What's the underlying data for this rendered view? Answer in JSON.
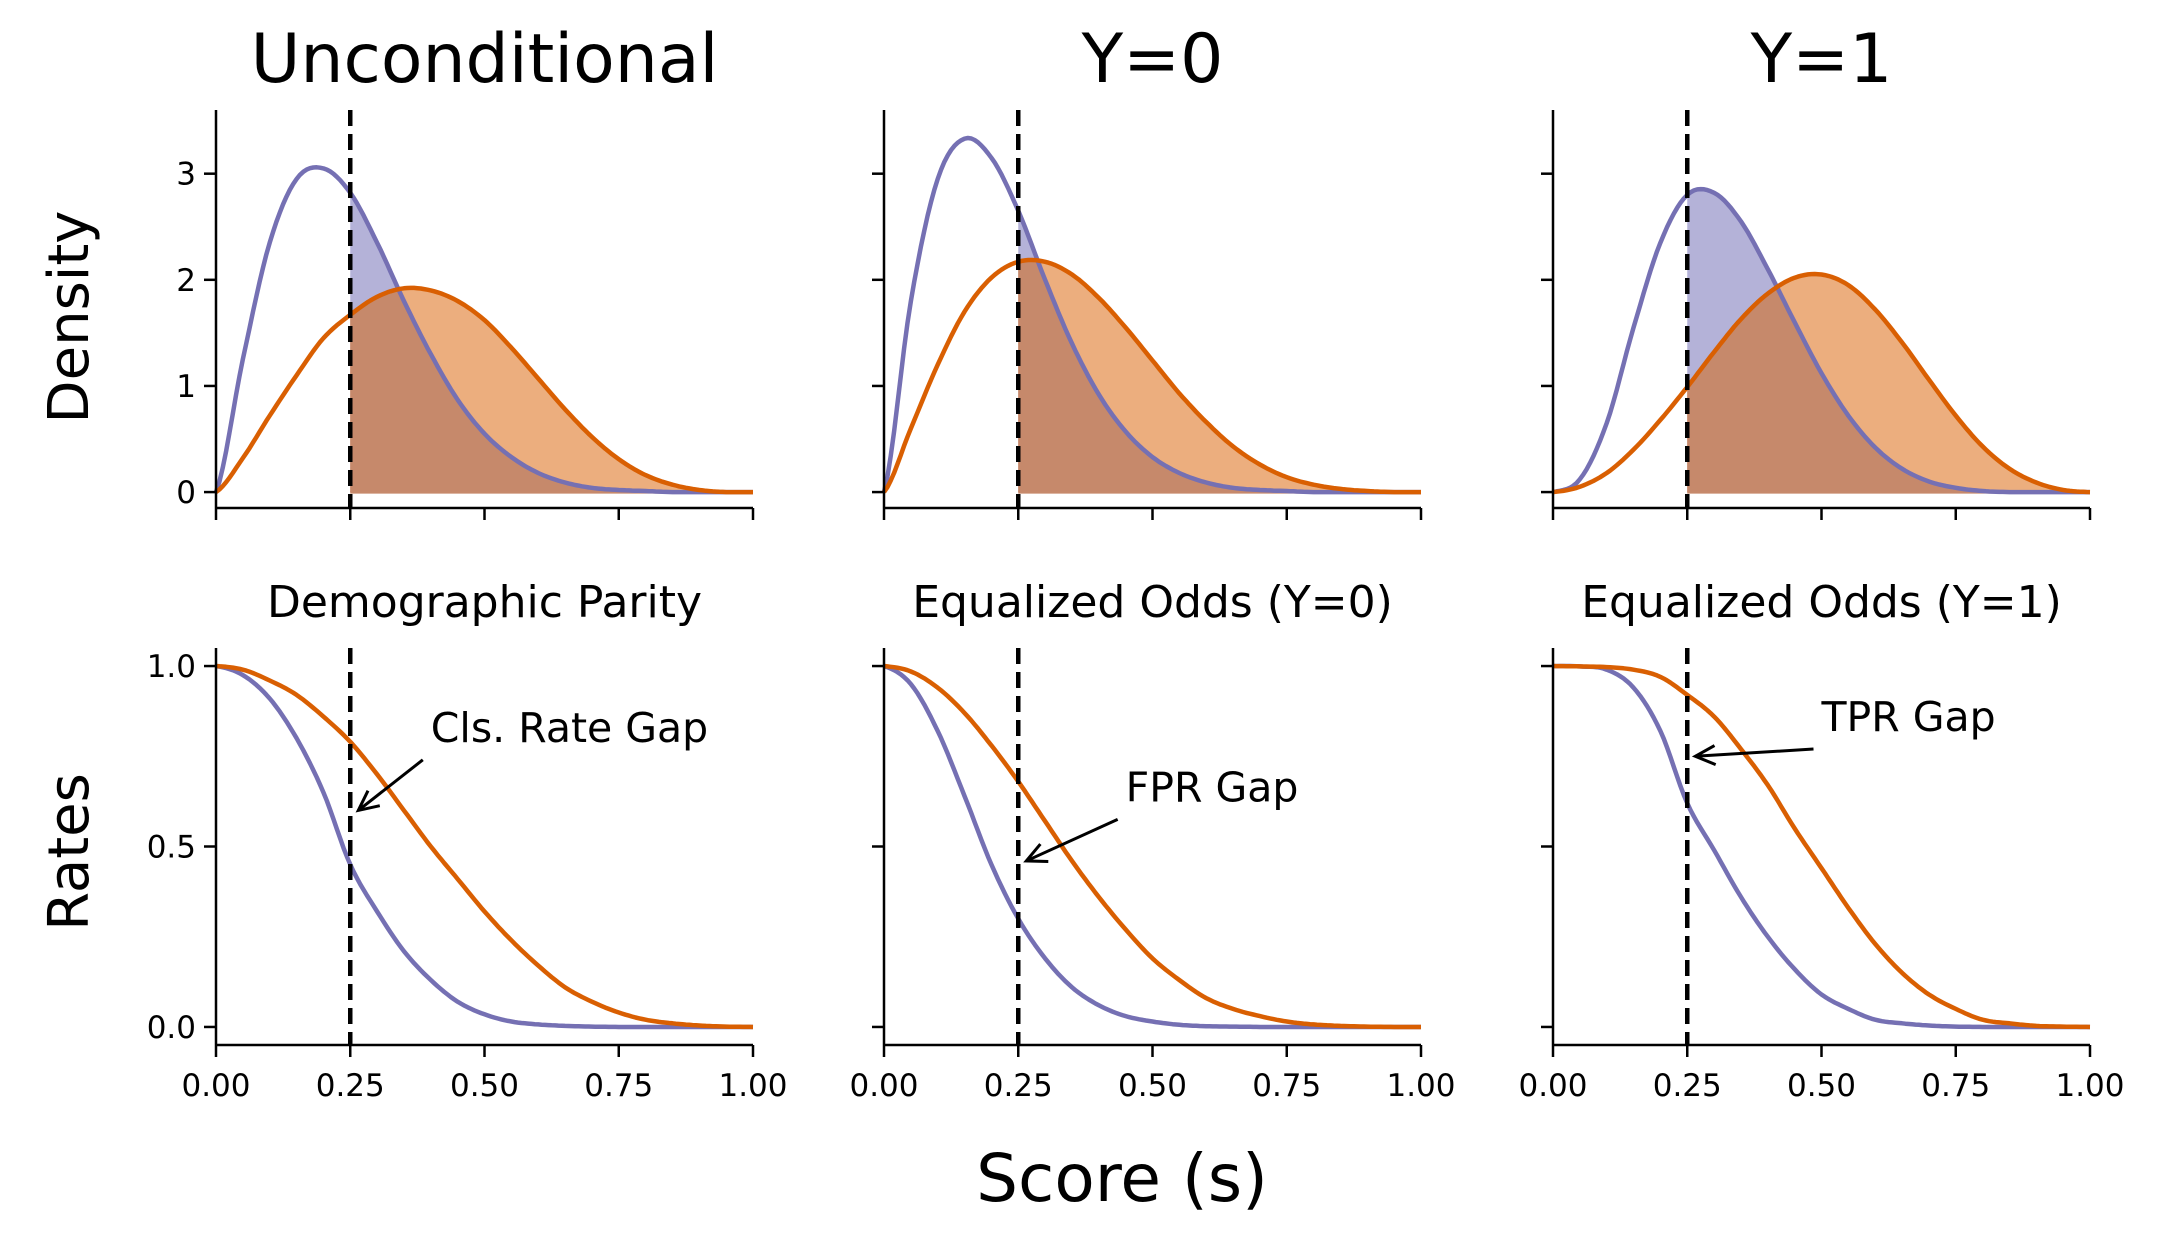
{
  "figure": {
    "xlabel": "Score (s)",
    "row_labels": [
      "Density",
      "Rates"
    ]
  },
  "colors": {
    "group_a": "#7570b3",
    "group_b": "#d95f02",
    "fill_a": "#b4b2d8",
    "fill_b": "#ecae7e",
    "overlap": "#c6896b",
    "threshold": "#000000"
  },
  "chart_data": [
    {
      "id": "density-unconditional",
      "type": "area",
      "title": "Unconditional",
      "xlabel": "",
      "ylabel": "Density",
      "xlim": [
        0,
        1
      ],
      "ylim": [
        -0.15,
        3.6
      ],
      "yticks": [
        0,
        1,
        2,
        3
      ],
      "ytick_labels": [
        "0",
        "1",
        "2",
        "3"
      ],
      "show_ytick_labels": true,
      "xticks": [
        0,
        0.25,
        0.5,
        0.75,
        1.0
      ],
      "show_xtick_labels": false,
      "threshold": 0.25,
      "shade_right_of_threshold": true,
      "series": [
        {
          "color": "#7570b3",
          "x": [
            0,
            0.05,
            0.1,
            0.15,
            0.2,
            0.25,
            0.3,
            0.35,
            0.4,
            0.45,
            0.5,
            0.55,
            0.6,
            0.65,
            0.7,
            0.75,
            0.8,
            0.85,
            0.9,
            0.95,
            1.0
          ],
          "y": [
            0,
            1.25,
            2.35,
            2.95,
            3.05,
            2.82,
            2.35,
            1.8,
            1.3,
            0.87,
            0.55,
            0.33,
            0.18,
            0.09,
            0.04,
            0.02,
            0.01,
            0,
            0,
            0,
            0
          ]
        },
        {
          "color": "#d95f02",
          "x": [
            0,
            0.05,
            0.1,
            0.15,
            0.2,
            0.25,
            0.3,
            0.35,
            0.4,
            0.45,
            0.5,
            0.55,
            0.6,
            0.65,
            0.7,
            0.75,
            0.8,
            0.85,
            0.9,
            0.95,
            1.0
          ],
          "y": [
            0,
            0.32,
            0.72,
            1.1,
            1.45,
            1.67,
            1.84,
            1.92,
            1.9,
            1.8,
            1.62,
            1.36,
            1.07,
            0.78,
            0.52,
            0.31,
            0.16,
            0.07,
            0.02,
            0,
            0
          ]
        }
      ]
    },
    {
      "id": "density-y0",
      "type": "area",
      "title": "Y=0",
      "xlabel": "",
      "ylabel": "",
      "xlim": [
        0,
        1
      ],
      "ylim": [
        -0.15,
        3.6
      ],
      "yticks": [
        0,
        1,
        2,
        3
      ],
      "show_ytick_labels": false,
      "xticks": [
        0,
        0.25,
        0.5,
        0.75,
        1.0
      ],
      "show_xtick_labels": false,
      "threshold": 0.25,
      "shade_right_of_threshold": true,
      "series": [
        {
          "color": "#7570b3",
          "x": [
            0,
            0.05,
            0.1,
            0.15,
            0.2,
            0.25,
            0.3,
            0.35,
            0.4,
            0.45,
            0.5,
            0.55,
            0.6,
            0.65,
            0.7,
            0.75,
            0.8,
            0.85,
            0.9,
            0.95,
            1.0
          ],
          "y": [
            0,
            1.8,
            2.95,
            3.33,
            3.15,
            2.65,
            2.0,
            1.4,
            0.92,
            0.57,
            0.33,
            0.18,
            0.09,
            0.04,
            0.02,
            0.01,
            0,
            0,
            0,
            0,
            0
          ]
        },
        {
          "color": "#d95f02",
          "x": [
            0,
            0.05,
            0.1,
            0.15,
            0.2,
            0.25,
            0.3,
            0.35,
            0.4,
            0.45,
            0.5,
            0.55,
            0.6,
            0.65,
            0.7,
            0.75,
            0.8,
            0.85,
            0.9,
            0.95,
            1.0
          ],
          "y": [
            0,
            0.6,
            1.2,
            1.7,
            2.02,
            2.17,
            2.17,
            2.05,
            1.83,
            1.55,
            1.24,
            0.93,
            0.66,
            0.43,
            0.26,
            0.14,
            0.07,
            0.03,
            0.01,
            0,
            0
          ]
        }
      ]
    },
    {
      "id": "density-y1",
      "type": "area",
      "title": "Y=1",
      "xlabel": "",
      "ylabel": "",
      "xlim": [
        0,
        1
      ],
      "ylim": [
        -0.15,
        3.6
      ],
      "yticks": [
        0,
        1,
        2,
        3
      ],
      "show_ytick_labels": false,
      "xticks": [
        0,
        0.25,
        0.5,
        0.75,
        1.0
      ],
      "show_xtick_labels": false,
      "threshold": 0.25,
      "shade_right_of_threshold": true,
      "series": [
        {
          "color": "#7570b3",
          "x": [
            0,
            0.05,
            0.1,
            0.15,
            0.2,
            0.25,
            0.3,
            0.35,
            0.4,
            0.45,
            0.5,
            0.55,
            0.6,
            0.65,
            0.7,
            0.75,
            0.8,
            0.85,
            0.9,
            0.95,
            1.0
          ],
          "y": [
            0,
            0.12,
            0.65,
            1.55,
            2.35,
            2.8,
            2.82,
            2.55,
            2.1,
            1.6,
            1.12,
            0.72,
            0.42,
            0.22,
            0.1,
            0.04,
            0.01,
            0,
            0,
            0,
            0
          ]
        },
        {
          "color": "#d95f02",
          "x": [
            0,
            0.05,
            0.1,
            0.15,
            0.2,
            0.25,
            0.3,
            0.35,
            0.4,
            0.45,
            0.5,
            0.55,
            0.6,
            0.65,
            0.7,
            0.75,
            0.8,
            0.85,
            0.9,
            0.95,
            1.0
          ],
          "y": [
            0,
            0.05,
            0.18,
            0.4,
            0.68,
            0.99,
            1.32,
            1.63,
            1.87,
            2.02,
            2.05,
            1.95,
            1.72,
            1.41,
            1.06,
            0.72,
            0.43,
            0.22,
            0.09,
            0.02,
            0
          ]
        }
      ]
    },
    {
      "id": "rates-dp",
      "type": "line",
      "title": "Demographic Parity",
      "xlabel": "",
      "ylabel": "Rates",
      "xlim": [
        0,
        1
      ],
      "ylim": [
        -0.05,
        1.05
      ],
      "yticks": [
        0,
        0.5,
        1.0
      ],
      "ytick_labels": [
        "0.0",
        "0.5",
        "1.0"
      ],
      "show_ytick_labels": true,
      "xticks": [
        0,
        0.25,
        0.5,
        0.75,
        1.0
      ],
      "xtick_labels": [
        "0.00",
        "0.25",
        "0.50",
        "0.75",
        "1.00"
      ],
      "show_xtick_labels": true,
      "threshold": 0.25,
      "annotation": {
        "text": "Cls. Rate Gap",
        "text_x": 0.4,
        "text_y": 0.79,
        "arrow_x": 0.265,
        "arrow_y": 0.6
      },
      "series": [
        {
          "color": "#7570b3",
          "x": [
            0,
            0.05,
            0.1,
            0.15,
            0.2,
            0.25,
            0.3,
            0.35,
            0.4,
            0.45,
            0.5,
            0.55,
            0.6,
            0.65,
            0.7,
            0.75,
            0.8,
            0.85,
            0.9,
            0.95,
            1.0
          ],
          "y": [
            1.0,
            0.975,
            0.91,
            0.8,
            0.65,
            0.45,
            0.32,
            0.21,
            0.13,
            0.07,
            0.035,
            0.015,
            0.007,
            0.003,
            0.001,
            0,
            0,
            0,
            0,
            0,
            0
          ]
        },
        {
          "color": "#d95f02",
          "x": [
            0,
            0.05,
            0.1,
            0.15,
            0.2,
            0.25,
            0.3,
            0.35,
            0.4,
            0.45,
            0.5,
            0.55,
            0.6,
            0.65,
            0.7,
            0.75,
            0.8,
            0.85,
            0.9,
            0.95,
            1.0
          ],
          "y": [
            1.0,
            0.99,
            0.96,
            0.92,
            0.86,
            0.79,
            0.7,
            0.6,
            0.5,
            0.41,
            0.32,
            0.24,
            0.17,
            0.11,
            0.07,
            0.04,
            0.02,
            0.01,
            0.004,
            0.001,
            0
          ]
        }
      ]
    },
    {
      "id": "rates-eo0",
      "type": "line",
      "title": "Equalized Odds (Y=0)",
      "xlabel": "",
      "ylabel": "",
      "xlim": [
        0,
        1
      ],
      "ylim": [
        -0.05,
        1.05
      ],
      "yticks": [
        0,
        0.5,
        1.0
      ],
      "show_ytick_labels": false,
      "xticks": [
        0,
        0.25,
        0.5,
        0.75,
        1.0
      ],
      "xtick_labels": [
        "0.00",
        "0.25",
        "0.50",
        "0.75",
        "1.00"
      ],
      "show_xtick_labels": true,
      "threshold": 0.25,
      "annotation": {
        "text": "FPR Gap",
        "text_x": 0.45,
        "text_y": 0.625,
        "arrow_x": 0.265,
        "arrow_y": 0.46
      },
      "series": [
        {
          "color": "#7570b3",
          "x": [
            0,
            0.05,
            0.1,
            0.15,
            0.2,
            0.25,
            0.3,
            0.35,
            0.4,
            0.45,
            0.5,
            0.55,
            0.6,
            0.65,
            0.7,
            0.75,
            0.8,
            0.85,
            0.9,
            0.95,
            1.0
          ],
          "y": [
            1.0,
            0.95,
            0.82,
            0.64,
            0.45,
            0.3,
            0.19,
            0.11,
            0.06,
            0.03,
            0.015,
            0.006,
            0.002,
            0.001,
            0,
            0,
            0,
            0,
            0,
            0,
            0
          ]
        },
        {
          "color": "#d95f02",
          "x": [
            0,
            0.05,
            0.1,
            0.15,
            0.2,
            0.25,
            0.3,
            0.35,
            0.4,
            0.45,
            0.5,
            0.55,
            0.6,
            0.65,
            0.7,
            0.75,
            0.8,
            0.85,
            0.9,
            0.95,
            1.0
          ],
          "y": [
            1.0,
            0.985,
            0.94,
            0.87,
            0.78,
            0.68,
            0.57,
            0.46,
            0.36,
            0.27,
            0.19,
            0.13,
            0.08,
            0.05,
            0.03,
            0.015,
            0.007,
            0.003,
            0.001,
            0,
            0
          ]
        }
      ]
    },
    {
      "id": "rates-eo1",
      "type": "line",
      "title": "Equalized Odds (Y=1)",
      "xlabel": "",
      "ylabel": "",
      "xlim": [
        0,
        1
      ],
      "ylim": [
        -0.05,
        1.05
      ],
      "yticks": [
        0,
        0.5,
        1.0
      ],
      "show_ytick_labels": false,
      "xticks": [
        0,
        0.25,
        0.5,
        0.75,
        1.0
      ],
      "xtick_labels": [
        "0.00",
        "0.25",
        "0.50",
        "0.75",
        "1.00"
      ],
      "show_xtick_labels": true,
      "threshold": 0.25,
      "annotation": {
        "text": "TPR Gap",
        "text_x": 0.5,
        "text_y": 0.82,
        "arrow_x": 0.265,
        "arrow_y": 0.75
      },
      "series": [
        {
          "color": "#7570b3",
          "x": [
            0,
            0.05,
            0.1,
            0.15,
            0.2,
            0.25,
            0.3,
            0.35,
            0.4,
            0.45,
            0.5,
            0.55,
            0.6,
            0.65,
            0.7,
            0.75,
            0.8,
            0.85,
            0.9,
            0.95,
            1.0
          ],
          "y": [
            1.0,
            0.999,
            0.99,
            0.94,
            0.82,
            0.62,
            0.49,
            0.36,
            0.25,
            0.16,
            0.09,
            0.05,
            0.02,
            0.01,
            0.004,
            0.001,
            0,
            0,
            0,
            0,
            0
          ]
        },
        {
          "color": "#d95f02",
          "x": [
            0,
            0.05,
            0.1,
            0.15,
            0.2,
            0.25,
            0.3,
            0.35,
            0.4,
            0.45,
            0.5,
            0.55,
            0.6,
            0.65,
            0.7,
            0.75,
            0.8,
            0.85,
            0.9,
            0.95,
            1.0
          ],
          "y": [
            1.0,
            0.999,
            0.997,
            0.99,
            0.97,
            0.92,
            0.86,
            0.77,
            0.67,
            0.55,
            0.44,
            0.33,
            0.23,
            0.15,
            0.09,
            0.05,
            0.02,
            0.01,
            0.003,
            0.001,
            0
          ]
        }
      ]
    }
  ]
}
